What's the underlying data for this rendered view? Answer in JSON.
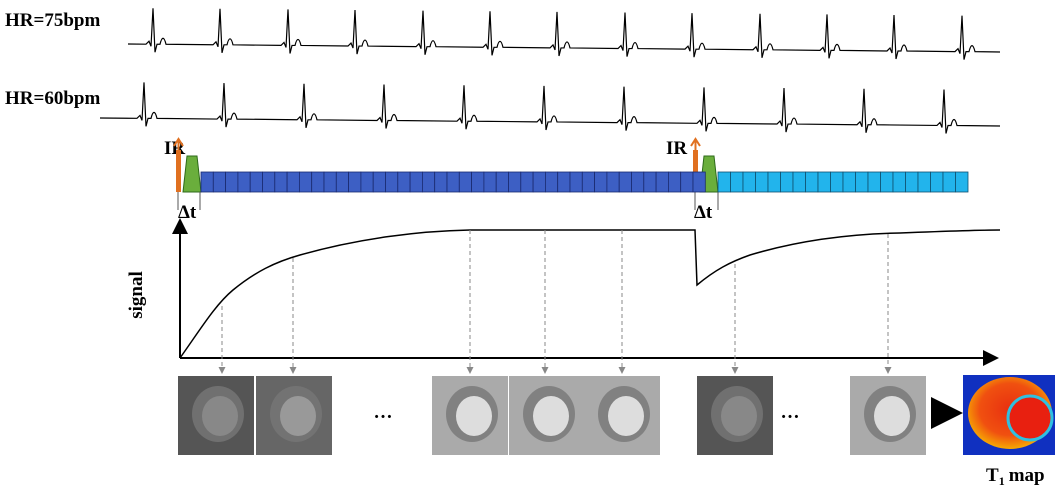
{
  "labels": {
    "hr_75": "HR=75bpm",
    "hr_60": "HR=60bpm",
    "ir": [
      "IR",
      "IR"
    ],
    "delta_t": [
      "Δt",
      "Δt"
    ],
    "signal": "signal",
    "ellipsis": [
      "…",
      "…"
    ],
    "t1_map": {
      "main": "T",
      "sub": "1",
      "rest": "map"
    }
  }
}
